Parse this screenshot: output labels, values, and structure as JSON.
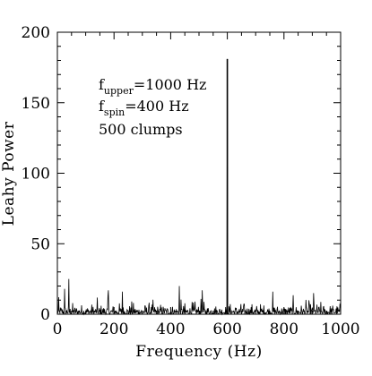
{
  "chart_data": {
    "type": "line",
    "title": "",
    "xlabel": "Frequency (Hz)",
    "ylabel": "Leahy Power",
    "xlim": [
      0,
      1000
    ],
    "ylim": [
      0,
      200
    ],
    "x_major_ticks": [
      0,
      200,
      400,
      600,
      800,
      1000
    ],
    "y_major_ticks": [
      0,
      50,
      100,
      150,
      200
    ],
    "x_tick_labels": [
      "0",
      "200",
      "400",
      "600",
      "800",
      "1000"
    ],
    "y_tick_labels": [
      "0",
      "50",
      "100",
      "150",
      "200"
    ],
    "x_minor_step": 50,
    "y_minor_step": 10,
    "grid": false,
    "legend": "none",
    "line_color": "#000000",
    "annotations": [
      {
        "base": "f",
        "sub": "upper",
        "rest": "=1000 Hz"
      },
      {
        "base": "f",
        "sub": "spin",
        "rest": "=400 Hz"
      },
      {
        "base": "500 clumps",
        "sub": "",
        "rest": ""
      }
    ],
    "series": [
      {
        "noise_level_typical": [
          0,
          12
        ],
        "noise_max": 25,
        "spike": {
          "x": 600,
          "y": 181
        }
      }
    ]
  }
}
